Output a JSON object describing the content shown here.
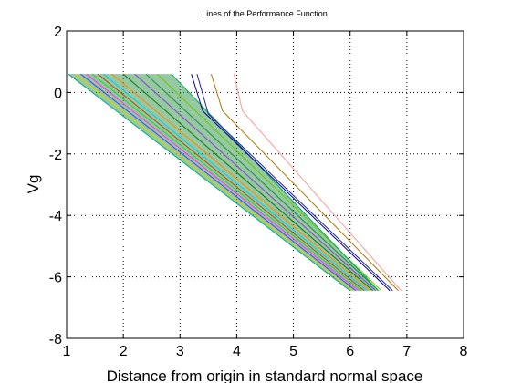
{
  "chart_data": {
    "type": "line",
    "title": "Lines of the Performance Function",
    "xlabel": "Distance from origin in standard normal space",
    "ylabel": "Vg",
    "xlim": [
      1,
      8
    ],
    "ylim": [
      -8,
      2
    ],
    "xticks": [
      "1",
      "2",
      "3",
      "4",
      "5",
      "6",
      "7",
      "8"
    ],
    "yticks": [
      "-8",
      "-6",
      "-4",
      "-2",
      "0",
      "2"
    ],
    "grid": true,
    "legend": "none",
    "series": [
      {
        "color": "#00aa88",
        "values": [
          [
            1.03,
            0.6
          ],
          [
            6.0,
            -6.45
          ]
        ]
      },
      {
        "color": "#d4d400",
        "values": [
          [
            1.15,
            0.6
          ],
          [
            6.05,
            -6.45
          ]
        ]
      },
      {
        "color": "#4444ff",
        "values": [
          [
            1.25,
            0.6
          ],
          [
            6.1,
            -6.45
          ]
        ]
      },
      {
        "color": "#ff33ff",
        "values": [
          [
            1.35,
            0.6
          ],
          [
            6.15,
            -6.45
          ]
        ]
      },
      {
        "color": "#33cc33",
        "values": [
          [
            1.45,
            0.6
          ],
          [
            6.2,
            -6.45
          ]
        ]
      },
      {
        "color": "#aa5500",
        "values": [
          [
            1.55,
            0.6
          ],
          [
            6.25,
            -6.45
          ]
        ]
      },
      {
        "color": "#00ccff",
        "values": [
          [
            1.65,
            0.6
          ],
          [
            6.3,
            -6.45
          ]
        ]
      },
      {
        "color": "#ff8800",
        "values": [
          [
            1.8,
            0.6
          ],
          [
            6.35,
            -6.45
          ]
        ]
      },
      {
        "color": "#117711",
        "values": [
          [
            2.0,
            0.6
          ],
          [
            6.4,
            -6.45
          ]
        ]
      },
      {
        "color": "#8844cc",
        "values": [
          [
            2.2,
            0.6
          ],
          [
            6.45,
            -6.45
          ]
        ]
      },
      {
        "color": "#228844",
        "values": [
          [
            2.4,
            0.6
          ],
          [
            6.5,
            -6.45
          ]
        ]
      },
      {
        "color": "#66cc00",
        "values": [
          [
            2.6,
            0.6
          ],
          [
            6.55,
            -6.45
          ]
        ]
      },
      {
        "color": "#00aa66",
        "values": [
          [
            2.85,
            0.6
          ],
          [
            6.5,
            -6.45
          ]
        ]
      },
      {
        "color": "#000088",
        "values": [
          [
            3.2,
            0.6
          ],
          [
            3.4,
            -0.6
          ],
          [
            6.7,
            -6.45
          ]
        ]
      },
      {
        "color": "#2222aa",
        "values": [
          [
            3.3,
            0.6
          ],
          [
            3.5,
            -0.7
          ],
          [
            6.75,
            -6.45
          ]
        ]
      },
      {
        "color": "#aa7700",
        "values": [
          [
            3.55,
            0.6
          ],
          [
            3.75,
            -0.6
          ],
          [
            6.85,
            -6.45
          ]
        ]
      },
      {
        "color": "#ff9999",
        "values": [
          [
            3.95,
            0.6
          ],
          [
            4.1,
            -0.6
          ],
          [
            6.9,
            -6.45
          ]
        ]
      }
    ]
  }
}
